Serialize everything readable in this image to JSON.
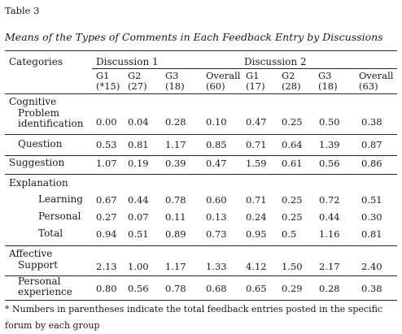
{
  "table_number": "Table 3",
  "caption": "Means of the Types of Comments in Each Feedback Entry by Discussions",
  "header": {
    "categories_label": "Categories",
    "discussion1_label": "Discussion 1",
    "discussion2_label": "Discussion 2",
    "subheaders": [
      [
        "G1",
        "(*15)"
      ],
      [
        "G2",
        "(27)"
      ],
      [
        "G3",
        "(18)"
      ],
      [
        "Overall",
        "(60)"
      ],
      [
        "G1",
        "(17)"
      ],
      [
        "G2",
        "(28)"
      ],
      [
        "G3",
        "(18)"
      ],
      [
        "Overall",
        "(63)"
      ]
    ]
  },
  "sections": {
    "cognitive": "Cognitive",
    "affective": "Affective"
  },
  "rows": [
    {
      "label": [
        "Problem",
        "identification"
      ],
      "values": [
        "0.00",
        "0.04",
        "0.28",
        "0.10",
        "0.47",
        "0.25",
        "0.50",
        "0.38"
      ]
    },
    {
      "label": [
        "Question"
      ],
      "values": [
        "0.53",
        "0.81",
        "1.17",
        "0.85",
        "0.71",
        "0.64",
        "1.39",
        "0.87"
      ]
    },
    {
      "label": [
        "Suggestion"
      ],
      "values": [
        "1.07",
        "0.19",
        "0.39",
        "0.47",
        "1.59",
        "0.61",
        "0.56",
        "0.86"
      ]
    },
    {
      "label": [
        "Explanation"
      ],
      "values": []
    },
    {
      "label": [
        "Learning"
      ],
      "values": [
        "0.67",
        "0.44",
        "0.78",
        "0.60",
        "0.71",
        "0.25",
        "0.72",
        "0.51"
      ]
    },
    {
      "label": [
        "Personal"
      ],
      "values": [
        "0.27",
        "0.07",
        "0.11",
        "0.13",
        "0.24",
        "0.25",
        "0.44",
        "0.30"
      ]
    },
    {
      "label": [
        "Total"
      ],
      "values": [
        "0.94",
        "0.51",
        "0.89",
        "0.73",
        "0.95",
        "0.5",
        "1.16",
        "0.81"
      ]
    },
    {
      "label": [
        "Support"
      ],
      "values": [
        "2.13",
        "1.00",
        "1.17",
        "1.33",
        "4.12",
        "1.50",
        "2.17",
        "2.40"
      ]
    },
    {
      "label": [
        "Personal",
        "experience"
      ],
      "values": [
        "0.80",
        "0.56",
        "0.78",
        "0.68",
        "0.65",
        "0.29",
        "0.28",
        "0.38"
      ]
    }
  ],
  "footnote": "* Numbers in parentheses indicate the total feedback entries posted in the specific forum by each group"
}
